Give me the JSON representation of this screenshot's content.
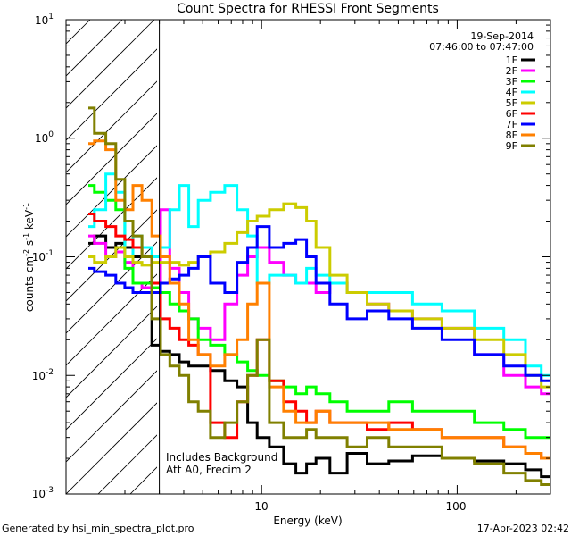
{
  "chart_data": {
    "type": "line",
    "title": "Count Spectra for RHESSI Front Segments",
    "xlabel": "Energy (keV)",
    "ylabel": "counts cm",
    "ylabel_sup1": "-2",
    "ylabel_mid": " s",
    "ylabel_sup2": "-1",
    "ylabel_mid2": " keV",
    "ylabel_sup3": "-1",
    "xscale": "log",
    "yscale": "log",
    "xlim": [
      1,
      300
    ],
    "ylim": [
      0.001,
      10
    ],
    "x_ticks": [
      "10",
      "100"
    ],
    "y_ticks": [
      {
        "base": "10",
        "exp": "-3"
      },
      {
        "base": "10",
        "exp": "-2"
      },
      {
        "base": "10",
        "exp": "-1"
      },
      {
        "base": "10",
        "exp": "0"
      },
      {
        "base": "10",
        "exp": "1"
      }
    ],
    "date": "19-Sep-2014",
    "time_range": "07:46:00 to 07:47:00",
    "note_line1": "Includes Background",
    "note_line2": "Att A0, Frecim 2",
    "hatch_region": [
      1,
      3
    ],
    "legend_position": "top-right",
    "series": [
      {
        "name": "1F",
        "color": "#000000",
        "x": [
          1.3,
          1.5,
          1.7,
          1.9,
          2.1,
          2.3,
          2.6,
          2.9,
          3.2,
          3.6,
          4.0,
          4.5,
          5.0,
          6,
          7,
          8,
          9,
          10,
          12,
          14,
          16,
          18,
          20,
          25,
          30,
          40,
          50,
          70,
          100,
          150,
          200,
          250,
          290
        ],
        "y": [
          0.13,
          0.15,
          0.12,
          0.13,
          0.12,
          0.1,
          0.1,
          0.018,
          0.016,
          0.015,
          0.013,
          0.012,
          0.012,
          0.011,
          0.009,
          0.008,
          0.004,
          0.003,
          0.0025,
          0.0018,
          0.0015,
          0.0018,
          0.002,
          0.0015,
          0.0022,
          0.0018,
          0.0019,
          0.0021,
          0.002,
          0.0019,
          0.0018,
          0.0016,
          0.0014
        ]
      },
      {
        "name": "2F",
        "color": "#ff00ff",
        "x": [
          1.3,
          1.5,
          1.7,
          1.9,
          2.1,
          2.3,
          2.6,
          2.9,
          3.2,
          3.6,
          4.0,
          4.5,
          5.0,
          6,
          7,
          8,
          9,
          10,
          12,
          14,
          16,
          18,
          20,
          25,
          30,
          40,
          50,
          70,
          100,
          150,
          200,
          250,
          290
        ],
        "y": [
          0.15,
          0.13,
          0.1,
          0.11,
          0.09,
          0.06,
          0.055,
          0.05,
          0.25,
          0.08,
          0.05,
          0.03,
          0.025,
          0.02,
          0.04,
          0.07,
          0.1,
          0.12,
          0.09,
          0.07,
          0.06,
          0.06,
          0.05,
          0.06,
          0.05,
          0.04,
          0.035,
          0.03,
          0.025,
          0.015,
          0.01,
          0.008,
          0.007
        ]
      },
      {
        "name": "3F",
        "color": "#00ff00",
        "x": [
          1.3,
          1.5,
          1.7,
          1.9,
          2.1,
          2.3,
          2.6,
          2.9,
          3.2,
          3.6,
          4.0,
          4.5,
          5.0,
          6,
          7,
          8,
          9,
          10,
          12,
          14,
          16,
          18,
          20,
          25,
          30,
          40,
          50,
          70,
          100,
          150,
          200,
          250,
          290
        ],
        "y": [
          0.4,
          0.35,
          0.3,
          0.25,
          0.08,
          0.06,
          0.06,
          0.055,
          0.05,
          0.04,
          0.035,
          0.03,
          0.02,
          0.018,
          0.015,
          0.013,
          0.011,
          0.01,
          0.009,
          0.008,
          0.007,
          0.008,
          0.007,
          0.006,
          0.005,
          0.005,
          0.006,
          0.005,
          0.005,
          0.004,
          0.0035,
          0.003,
          0.003
        ]
      },
      {
        "name": "4F",
        "color": "#00ffff",
        "x": [
          1.3,
          1.5,
          1.7,
          1.9,
          2.1,
          2.3,
          2.6,
          2.9,
          3.2,
          3.6,
          4.0,
          4.5,
          5.0,
          6,
          7,
          8,
          9,
          10,
          12,
          14,
          16,
          18,
          20,
          25,
          30,
          40,
          50,
          70,
          100,
          150,
          200,
          250,
          290
        ],
        "y": [
          0.18,
          0.25,
          0.5,
          0.35,
          0.1,
          0.15,
          0.12,
          0.1,
          0.12,
          0.25,
          0.4,
          0.18,
          0.3,
          0.35,
          0.4,
          0.25,
          0.15,
          0.06,
          0.07,
          0.07,
          0.06,
          0.08,
          0.07,
          0.06,
          0.05,
          0.05,
          0.05,
          0.04,
          0.035,
          0.025,
          0.02,
          0.012,
          0.01
        ]
      },
      {
        "name": "5F",
        "color": "#cccc00",
        "x": [
          1.3,
          1.5,
          1.7,
          1.9,
          2.1,
          2.3,
          2.6,
          2.9,
          3.2,
          3.6,
          4.0,
          4.5,
          5.0,
          6,
          7,
          8,
          9,
          10,
          12,
          14,
          16,
          18,
          20,
          25,
          30,
          40,
          50,
          70,
          100,
          150,
          200,
          250,
          290
        ],
        "y": [
          0.1,
          0.09,
          0.1,
          0.12,
          0.1,
          0.09,
          0.085,
          0.09,
          0.09,
          0.09,
          0.085,
          0.09,
          0.1,
          0.11,
          0.13,
          0.16,
          0.2,
          0.22,
          0.25,
          0.28,
          0.26,
          0.2,
          0.12,
          0.07,
          0.05,
          0.04,
          0.035,
          0.03,
          0.025,
          0.02,
          0.015,
          0.01,
          0.008
        ]
      },
      {
        "name": "6F",
        "color": "#ff0000",
        "x": [
          1.3,
          1.5,
          1.7,
          1.9,
          2.1,
          2.3,
          2.6,
          2.9,
          3.2,
          3.6,
          4.0,
          4.5,
          5.0,
          6,
          7,
          8,
          9,
          10,
          12,
          14,
          16,
          18,
          20,
          25,
          30,
          40,
          50,
          70,
          100,
          150,
          200,
          250,
          290
        ],
        "y": [
          0.23,
          0.2,
          0.18,
          0.15,
          0.14,
          0.12,
          0.1,
          0.06,
          0.03,
          0.025,
          0.02,
          0.018,
          0.015,
          0.004,
          0.003,
          0.006,
          0.01,
          0.02,
          0.009,
          0.006,
          0.005,
          0.004,
          0.005,
          0.004,
          0.004,
          0.0035,
          0.004,
          0.0035,
          0.003,
          0.003,
          0.0025,
          0.0022,
          0.002
        ]
      },
      {
        "name": "7F",
        "color": "#0000ff",
        "x": [
          1.3,
          1.5,
          1.7,
          1.9,
          2.1,
          2.3,
          2.6,
          2.9,
          3.2,
          3.6,
          4.0,
          4.5,
          5.0,
          6,
          7,
          8,
          9,
          10,
          12,
          14,
          16,
          18,
          20,
          25,
          30,
          40,
          50,
          70,
          100,
          150,
          200,
          250,
          290
        ],
        "y": [
          0.08,
          0.075,
          0.07,
          0.06,
          0.055,
          0.05,
          0.05,
          0.05,
          0.06,
          0.065,
          0.07,
          0.08,
          0.1,
          0.06,
          0.05,
          0.09,
          0.12,
          0.18,
          0.12,
          0.13,
          0.14,
          0.1,
          0.06,
          0.04,
          0.03,
          0.035,
          0.03,
          0.025,
          0.02,
          0.015,
          0.012,
          0.01,
          0.009
        ]
      },
      {
        "name": "8F",
        "color": "#ff8000",
        "x": [
          1.3,
          1.5,
          1.7,
          1.9,
          2.1,
          2.3,
          2.6,
          2.9,
          3.2,
          3.6,
          4.0,
          4.5,
          5.0,
          6,
          7,
          8,
          9,
          10,
          12,
          14,
          16,
          18,
          20,
          25,
          30,
          40,
          50,
          70,
          100,
          150,
          200,
          250,
          290
        ],
        "y": [
          0.9,
          0.95,
          0.8,
          0.3,
          0.25,
          0.4,
          0.3,
          0.15,
          0.1,
          0.06,
          0.04,
          0.02,
          0.015,
          0.012,
          0.015,
          0.02,
          0.04,
          0.06,
          0.008,
          0.005,
          0.004,
          0.004,
          0.005,
          0.004,
          0.004,
          0.004,
          0.0035,
          0.0035,
          0.003,
          0.003,
          0.0025,
          0.0022,
          0.002
        ]
      },
      {
        "name": "9F",
        "color": "#808000",
        "x": [
          1.3,
          1.5,
          1.7,
          1.9,
          2.1,
          2.3,
          2.6,
          2.9,
          3.2,
          3.6,
          4.0,
          4.5,
          5.0,
          6,
          7,
          8,
          9,
          10,
          12,
          14,
          16,
          18,
          20,
          25,
          30,
          40,
          50,
          70,
          100,
          150,
          200,
          250,
          290
        ],
        "y": [
          1.8,
          1.1,
          0.9,
          0.45,
          0.2,
          0.15,
          0.1,
          0.03,
          0.015,
          0.012,
          0.01,
          0.006,
          0.005,
          0.003,
          0.004,
          0.006,
          0.01,
          0.02,
          0.004,
          0.003,
          0.003,
          0.0035,
          0.003,
          0.003,
          0.0025,
          0.003,
          0.0025,
          0.0025,
          0.002,
          0.0018,
          0.0015,
          0.0013,
          0.0012
        ]
      }
    ]
  },
  "footer": {
    "generated_by": "Generated by hsi_min_spectra_plot.pro",
    "timestamp": "17-Apr-2023 02:42"
  }
}
